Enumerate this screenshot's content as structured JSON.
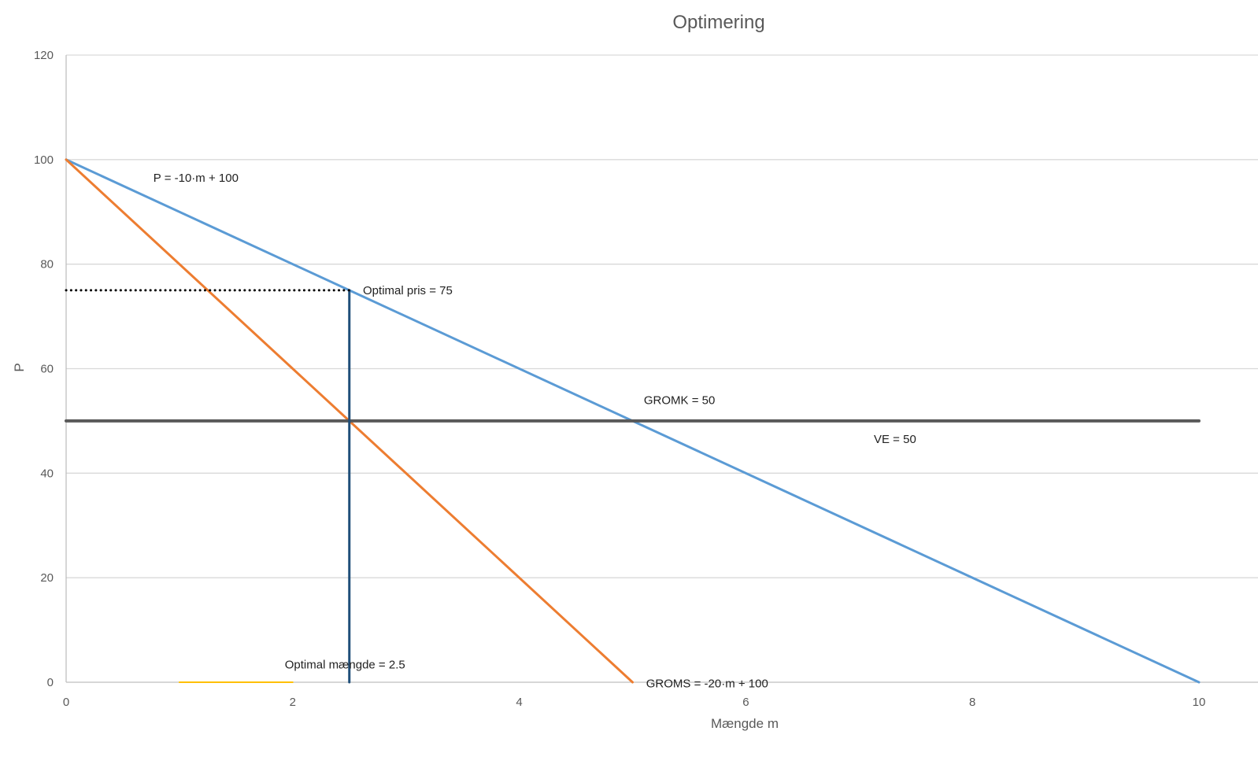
{
  "chart_data": {
    "type": "line",
    "title": "Optimering",
    "xlabel": "Mængde m",
    "ylabel": "P",
    "xlim": [
      0,
      10
    ],
    "ylim": [
      0,
      120
    ],
    "x_ticks": [
      0,
      2,
      4,
      6,
      8,
      10
    ],
    "y_ticks": [
      0,
      20,
      40,
      60,
      80,
      100,
      120
    ],
    "grid": "horizontal",
    "legend": "none",
    "series": [
      {
        "name": "",
        "color": "#5b9bd5",
        "style": "solid",
        "x": [
          0,
          10
        ],
        "y": [
          100,
          0
        ]
      },
      {
        "name": "",
        "color": "#ed7d31",
        "style": "solid",
        "x": [
          0,
          5
        ],
        "y": [
          100,
          0
        ]
      },
      {
        "name": "",
        "color": "#595959",
        "style": "solid",
        "x": [
          0,
          10
        ],
        "y": [
          50,
          50
        ]
      },
      {
        "name": "",
        "color": "#1f4e79",
        "style": "solid",
        "x": [
          2.5,
          2.5
        ],
        "y": [
          0,
          75
        ]
      },
      {
        "name": "",
        "color": "#000000",
        "style": "dotted",
        "x": [
          0,
          2.5
        ],
        "y": [
          75,
          75
        ]
      },
      {
        "name": "",
        "color": "#ffc000",
        "style": "solid",
        "x": [
          1,
          2
        ],
        "y": [
          0,
          0
        ]
      }
    ],
    "annotations": [
      {
        "text": "P = -10·m + 100",
        "x": 0.77,
        "y": 96.5
      },
      {
        "text": "Optimal pris = 75",
        "x": 2.62,
        "y": 75
      },
      {
        "text": "GROMK = 50",
        "x": 5.1,
        "y": 54
      },
      {
        "text": "VE = 50",
        "x": 7.13,
        "y": 46.5
      },
      {
        "text": "Optimal mængde = 2.5",
        "x": 1.93,
        "y": 3.4
      },
      {
        "text": "GROMS = -20·m + 100",
        "x": 5.12,
        "y": -0.2
      }
    ]
  }
}
